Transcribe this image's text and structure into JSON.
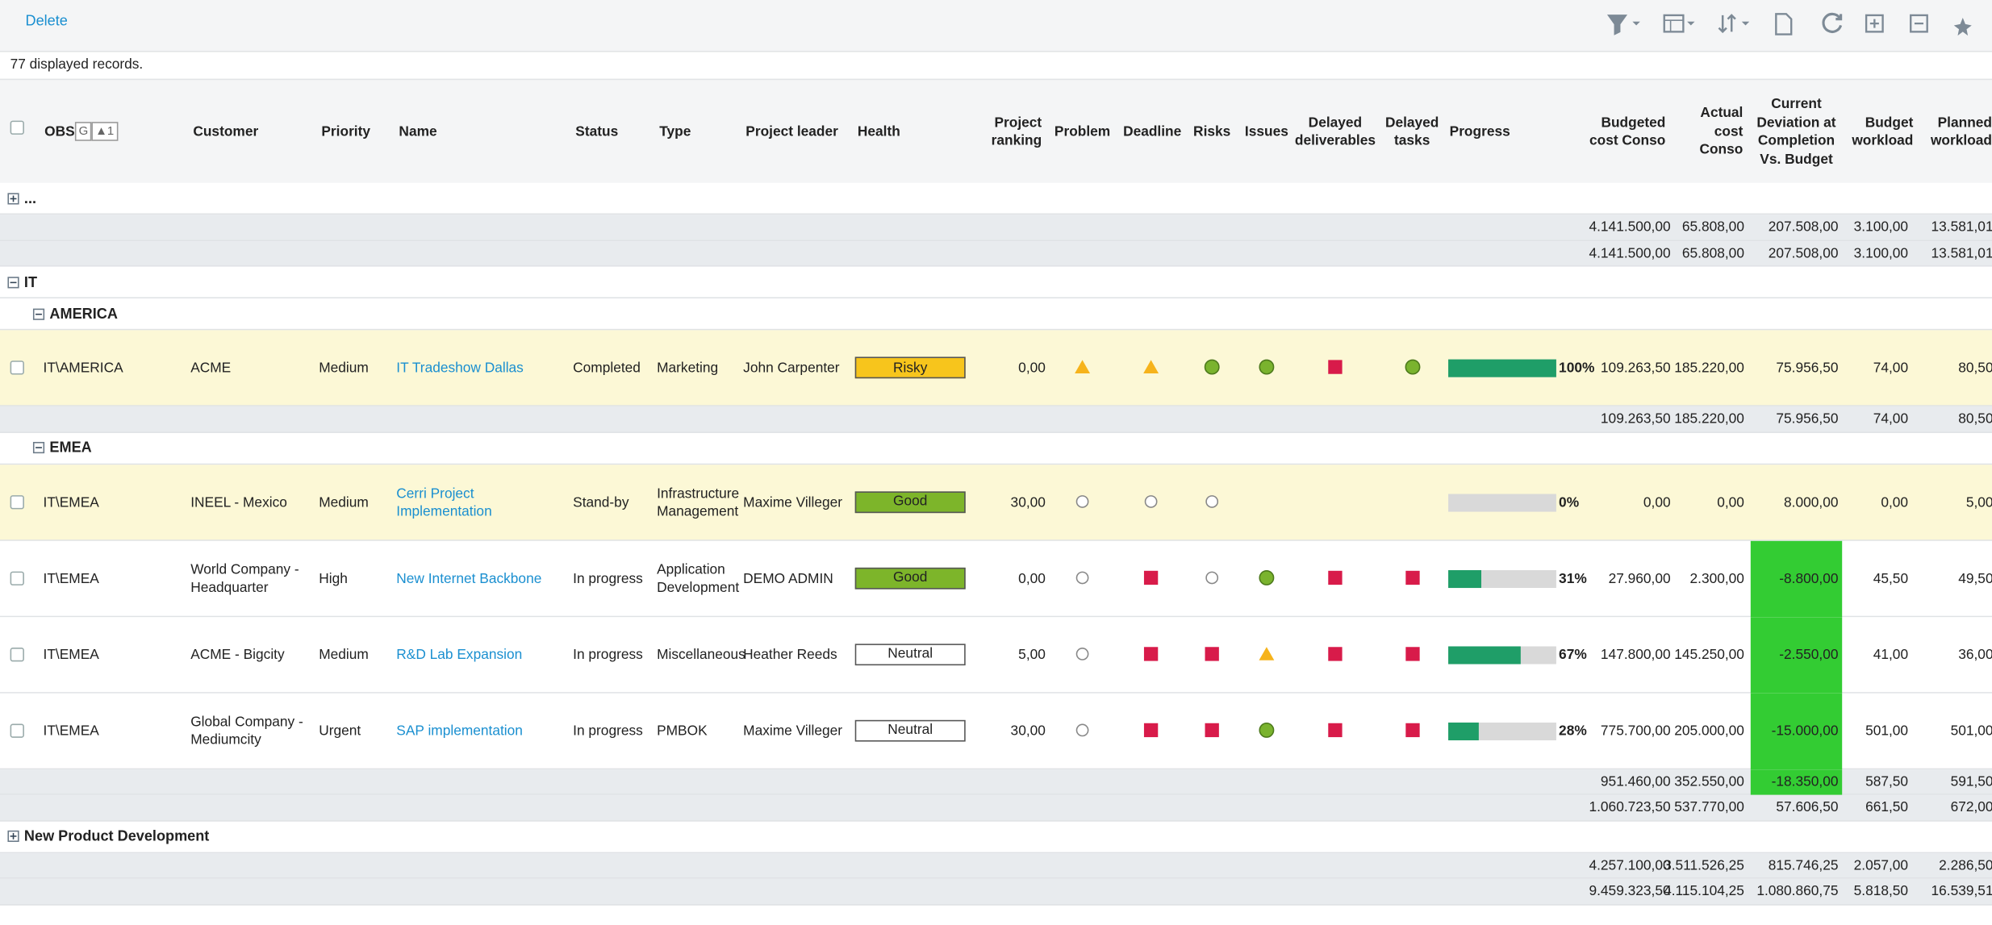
{
  "toolbar": {
    "delete": "Delete"
  },
  "status": "77 displayed records.",
  "header": {
    "obs": "OBS",
    "obs_badges": [
      "G",
      "▲1"
    ],
    "columns": [
      "Customer",
      "Priority",
      "Name",
      "Status",
      "Type",
      "Project leader",
      "Health",
      "Project ranking",
      "Problem",
      "Deadline",
      "Risks",
      "Issues",
      "Delayed deliverables",
      "Delayed tasks",
      "Progress",
      "Budgeted cost Conso",
      "Actual cost Conso",
      "Current Deviation at Completion Vs. Budget",
      "Budget workload",
      "Planned workload"
    ]
  },
  "rows": [
    {
      "kind": "group",
      "level": 0,
      "expanded": false,
      "label": "..."
    },
    {
      "kind": "total",
      "values": [
        "4.141.500,00",
        "65.808,00",
        "207.508,00",
        "3.100,00",
        "13.581,01"
      ]
    },
    {
      "kind": "total",
      "values": [
        "4.141.500,00",
        "65.808,00",
        "207.508,00",
        "3.100,00",
        "13.581,01"
      ]
    },
    {
      "kind": "group",
      "level": 0,
      "expanded": true,
      "label": "IT"
    },
    {
      "kind": "group",
      "level": 1,
      "expanded": true,
      "label": "AMERICA"
    },
    {
      "kind": "data",
      "highlight": true,
      "obs": "IT\\AMERICA",
      "customer": "ACME",
      "priority": "Medium",
      "name": "IT Tradeshow Dallas",
      "status": "Completed",
      "type": "Marketing",
      "leader": "John Carpenter",
      "health": "Risky",
      "health_color": "#f7c51c",
      "ranking": "0,00",
      "problem": "warning",
      "deadline": "warning",
      "risks": "ok",
      "issues": "ok",
      "delayed_deliverables": "late",
      "delayed_tasks": "ok",
      "progress": 100,
      "progress_label": "100%",
      "budgeted": "109.263,50",
      "actual": "185.220,00",
      "deviation": "75.956,50",
      "deviation_highlight": false,
      "budget_workload": "74,00",
      "planned_workload": "80,50"
    },
    {
      "kind": "total",
      "values": [
        "109.263,50",
        "185.220,00",
        "75.956,50",
        "74,00",
        "80,50"
      ]
    },
    {
      "kind": "group",
      "level": 1,
      "expanded": true,
      "label": "EMEA"
    },
    {
      "kind": "data",
      "highlight": true,
      "obs": "IT\\EMEA",
      "customer": "INEEL - Mexico",
      "priority": "Medium",
      "name": "Cerri Project Implementation",
      "status": "Stand-by",
      "type": "Infrastructure Management",
      "leader": "Maxime Villeger",
      "health": "Good",
      "health_color": "#7db52a",
      "ranking": "30,00",
      "problem": "empty",
      "deadline": "empty",
      "risks": "empty",
      "issues": null,
      "delayed_deliverables": null,
      "delayed_tasks": null,
      "progress": 0,
      "progress_label": "0%",
      "budgeted": "0,00",
      "actual": "0,00",
      "deviation": "8.000,00",
      "deviation_highlight": false,
      "budget_workload": "0,00",
      "planned_workload": "5,00"
    },
    {
      "kind": "data",
      "highlight": false,
      "obs": "IT\\EMEA",
      "customer": "World Company - Headquarter",
      "priority": "High",
      "name": "New Internet Backbone",
      "status": "In progress",
      "type": "Application Development",
      "leader": "DEMO ADMIN",
      "health": "Good",
      "health_color": "#7db52a",
      "ranking": "0,00",
      "problem": "empty",
      "deadline": "late",
      "risks": "empty",
      "issues": "ok",
      "delayed_deliverables": "late",
      "delayed_tasks": "late",
      "progress": 31,
      "progress_label": "31%",
      "budgeted": "27.960,00",
      "actual": "2.300,00",
      "deviation": "-8.800,00",
      "deviation_highlight": true,
      "budget_workload": "45,50",
      "planned_workload": "49,50"
    },
    {
      "kind": "data",
      "highlight": false,
      "obs": "IT\\EMEA",
      "customer": "ACME - Bigcity",
      "priority": "Medium",
      "name": "R&D Lab Expansion",
      "status": "In progress",
      "type": "Miscellaneous",
      "leader": "Heather Reeds",
      "health": "Neutral",
      "health_color": "#ffffff",
      "ranking": "5,00",
      "problem": "empty",
      "deadline": "late",
      "risks": "late",
      "issues": "warning",
      "delayed_deliverables": "late",
      "delayed_tasks": "late",
      "progress": 67,
      "progress_label": "67%",
      "budgeted": "147.800,00",
      "actual": "145.250,00",
      "deviation": "-2.550,00",
      "deviation_highlight": true,
      "budget_workload": "41,00",
      "planned_workload": "36,00"
    },
    {
      "kind": "data",
      "highlight": false,
      "obs": "IT\\EMEA",
      "customer": "Global Company - Mediumcity",
      "priority": "Urgent",
      "name": "SAP implementation",
      "status": "In progress",
      "type": "PMBOK",
      "leader": "Maxime Villeger",
      "health": "Neutral",
      "health_color": "#ffffff",
      "ranking": "30,00",
      "problem": "empty",
      "deadline": "late",
      "risks": "late",
      "issues": "ok",
      "delayed_deliverables": "late",
      "delayed_tasks": "late",
      "progress": 28,
      "progress_label": "28%",
      "budgeted": "775.700,00",
      "actual": "205.000,00",
      "deviation": "-15.000,00",
      "deviation_highlight": true,
      "budget_workload": "501,00",
      "planned_workload": "501,00"
    },
    {
      "kind": "total",
      "highlight": true,
      "values": [
        "951.460,00",
        "352.550,00",
        "-18.350,00",
        "587,50",
        "591,50"
      ]
    },
    {
      "kind": "total",
      "values": [
        "1.060.723,50",
        "537.770,00",
        "57.606,50",
        "661,50",
        "672,00"
      ]
    },
    {
      "kind": "group",
      "level": 0,
      "expanded": false,
      "label": "New Product Development"
    },
    {
      "kind": "total",
      "values": [
        "4.257.100,00",
        "3.511.526,25",
        "815.746,25",
        "2.057,00",
        "2.286,50"
      ]
    },
    {
      "kind": "total",
      "values": [
        "9.459.323,50",
        "4.115.104,25",
        "1.080.860,75",
        "5.818,50",
        "16.539,51"
      ]
    }
  ]
}
